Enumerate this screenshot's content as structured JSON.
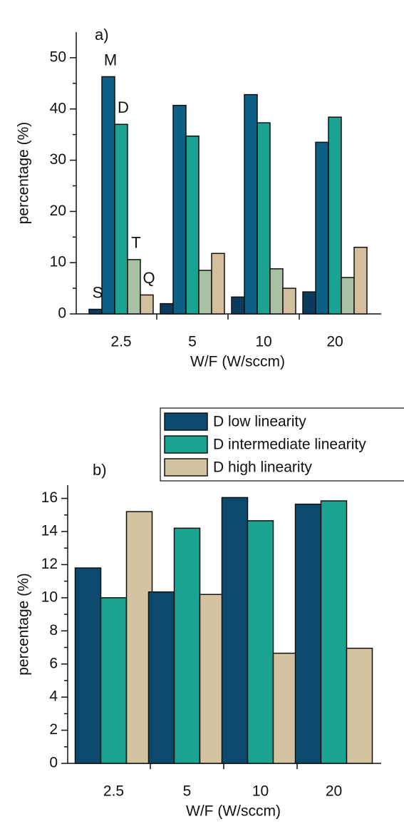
{
  "chart_data": [
    {
      "type": "bar",
      "panel": "a)",
      "x_label": "W/F (W/sccm)",
      "y_label": "percentage (%)",
      "categories": [
        "2.5",
        "5",
        "10",
        "20"
      ],
      "series": [
        {
          "name": "S",
          "color": "#0b3a5c",
          "values": [
            0.9,
            2.0,
            3.3,
            4.3
          ]
        },
        {
          "name": "M",
          "color": "#0e5f86",
          "values": [
            46.3,
            40.7,
            42.8,
            33.5
          ]
        },
        {
          "name": "D",
          "color": "#1ba392",
          "values": [
            37.0,
            34.7,
            37.3,
            38.4
          ]
        },
        {
          "name": "T",
          "color": "#a9c1a5",
          "values": [
            10.6,
            8.5,
            8.8,
            7.1
          ]
        },
        {
          "name": "Q",
          "color": "#d3bf9e",
          "values": [
            3.7,
            11.8,
            5.0,
            13.0
          ]
        }
      ],
      "ylim": [
        0,
        55
      ],
      "yticks": [
        0,
        10,
        20,
        30,
        40,
        50
      ],
      "legend": "first-group"
    },
    {
      "type": "bar",
      "panel": "b)",
      "x_label": "W/F (W/sccm)",
      "y_label": "percentage (%)",
      "categories": [
        "2.5",
        "5",
        "10",
        "20"
      ],
      "series": [
        {
          "name": "D low linearity",
          "color": "#0b4a6e",
          "values": [
            11.8,
            10.35,
            16.05,
            15.65
          ]
        },
        {
          "name": "D intermediate linearity",
          "color": "#1ba392",
          "values": [
            10.0,
            14.2,
            14.65,
            15.85
          ]
        },
        {
          "name": "D high linearity",
          "color": "#d3c3a0",
          "values": [
            15.2,
            10.2,
            6.65,
            6.95
          ]
        }
      ],
      "ylim": [
        0,
        16.8
      ],
      "yticks": [
        0,
        2,
        4,
        6,
        8,
        10,
        12,
        14,
        16
      ],
      "legend": "upper right"
    }
  ]
}
